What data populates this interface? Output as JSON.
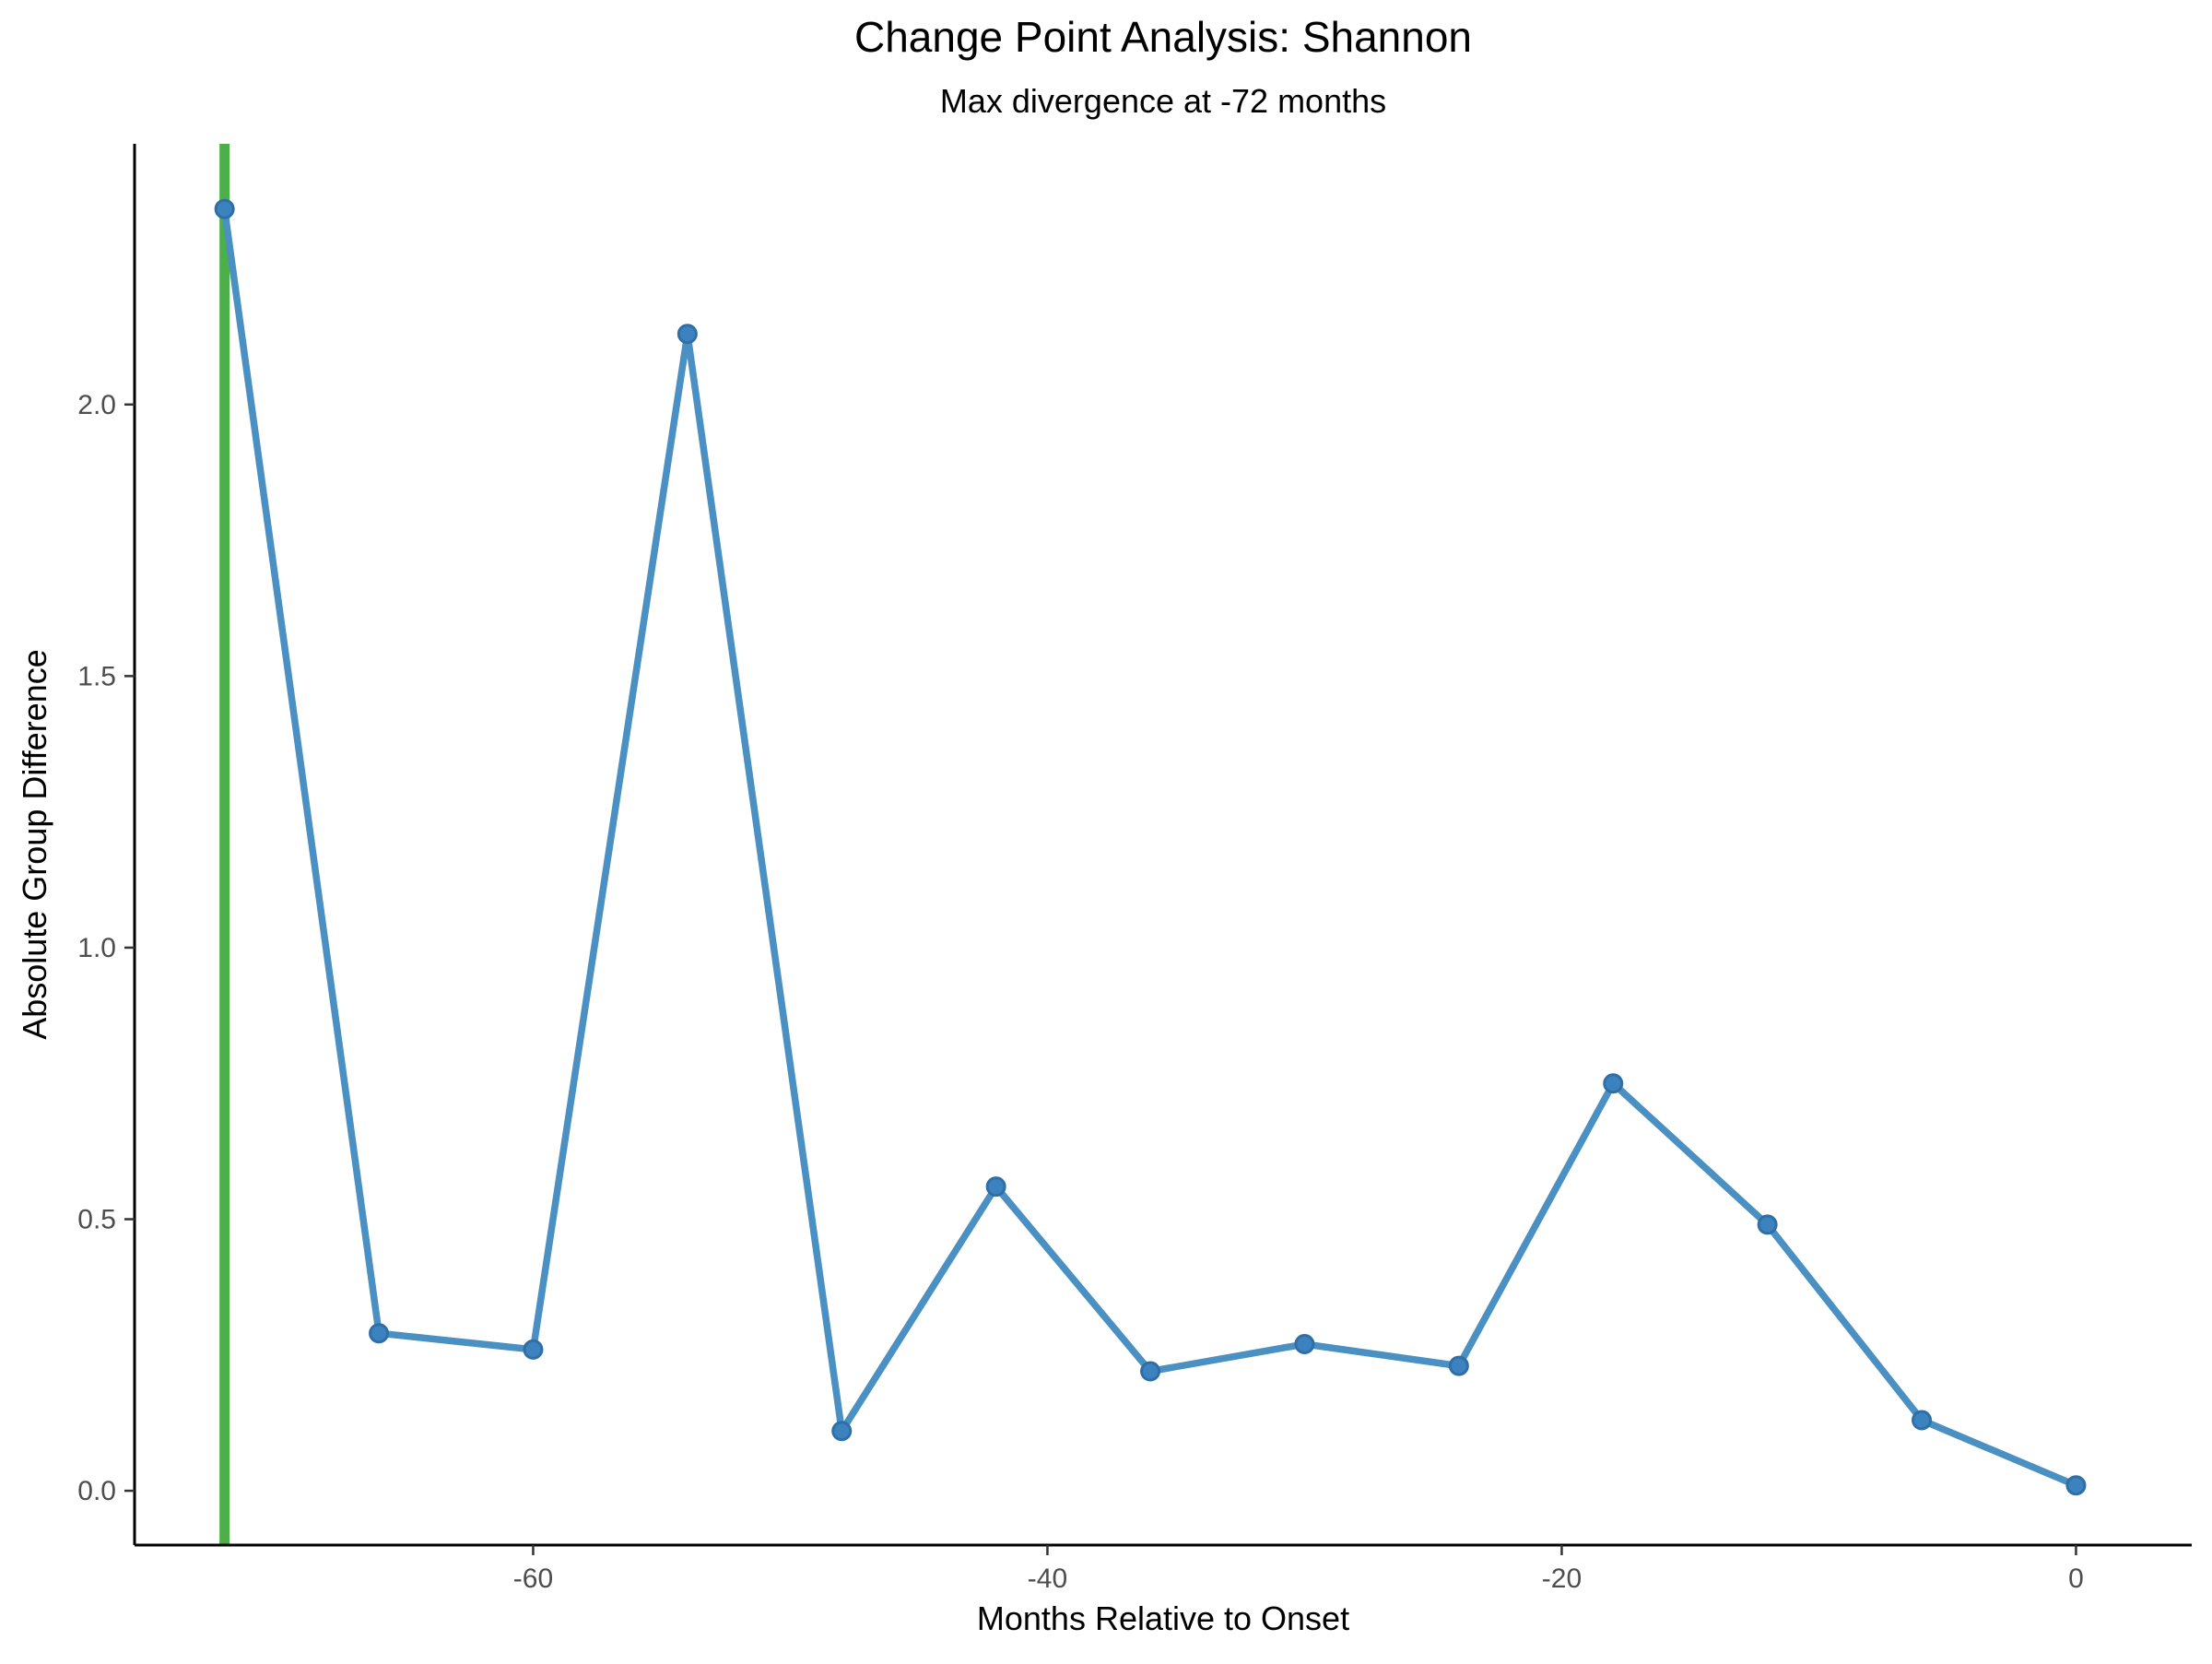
{
  "chart_data": {
    "type": "line",
    "title": "Change Point Analysis: Shannon",
    "subtitle": "Max divergence at -72 months",
    "xlabel": "Months Relative to Onset",
    "ylabel": "Absolute Group Difference",
    "xlim": [
      -75.5,
      4.5
    ],
    "ylim": [
      -0.1,
      2.48
    ],
    "x_ticks": [
      -60,
      -40,
      -20,
      0
    ],
    "y_ticks": [
      0.0,
      0.5,
      1.0,
      1.5,
      2.0
    ],
    "x_tick_labels": [
      "-60",
      "-40",
      "-20",
      "0"
    ],
    "y_tick_labels": [
      "0.0",
      "0.5",
      "1.0",
      "1.5",
      "2.0"
    ],
    "grid": false,
    "legend": "none",
    "series": [
      {
        "color": "#4a90c2",
        "x": [
          -72,
          -66,
          -60,
          -54,
          -48,
          -42,
          -36,
          -30,
          -24,
          -18,
          -12,
          -6,
          0
        ],
        "values": [
          2.36,
          0.29,
          0.26,
          2.13,
          0.11,
          0.56,
          0.22,
          0.27,
          0.23,
          0.75,
          0.49,
          0.13,
          0.01
        ]
      }
    ],
    "vline": {
      "x": -72,
      "color": "#4daf4a"
    }
  }
}
